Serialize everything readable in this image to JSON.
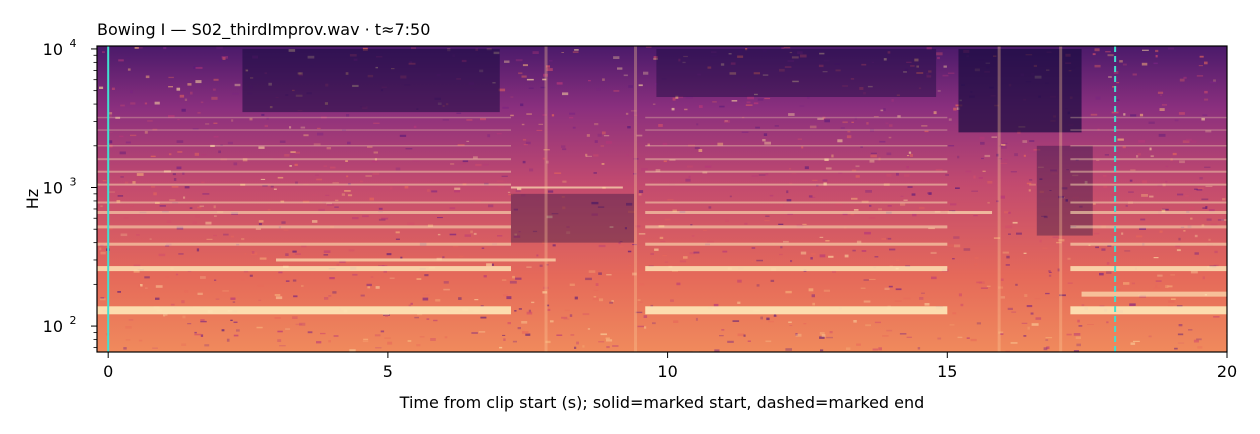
{
  "chart_data": {
    "type": "heatmap",
    "subtype": "spectrogram",
    "title": "Bowing I  —  S02_thirdImprov.wav · t≈7:50",
    "xlabel": "Time from clip start (s); solid=marked start, dashed=marked end",
    "ylabel": "Hz",
    "xlim": [
      -0.2,
      20
    ],
    "ylim": [
      65,
      10500
    ],
    "yscale": "log",
    "x_ticks": [
      0,
      5,
      10,
      15,
      20
    ],
    "x_tick_labels": [
      "0",
      "5",
      "10",
      "15",
      "20"
    ],
    "y_ticks": [
      100,
      1000,
      10000
    ],
    "y_tick_labels": [
      "10^2",
      "10^3",
      "10^4"
    ],
    "colormap": "magma",
    "markers": [
      {
        "name": "marked start",
        "x": 0,
        "style": "solid",
        "color": "#40e0d0"
      },
      {
        "name": "marked end",
        "x": 18,
        "style": "dashed",
        "color": "#40e0d0"
      }
    ],
    "grid": false,
    "legend": "none"
  }
}
